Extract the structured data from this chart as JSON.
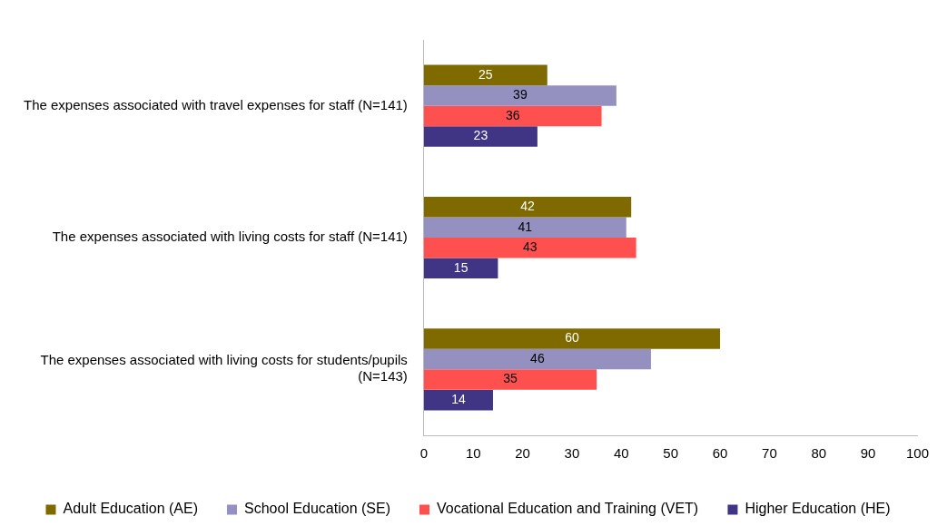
{
  "chart_data": {
    "type": "bar",
    "orientation": "horizontal",
    "categories": [
      "The expenses associated with travel expenses for staff (N=141)",
      "The expenses associated with living costs for staff (N=141)",
      "The expenses associated with living costs for students/pupils (N=143)"
    ],
    "series": [
      {
        "name": "Adult Education (AE)",
        "color": "#7f6a00",
        "values": [
          25,
          42,
          60
        ]
      },
      {
        "name": "School Education (SE)",
        "color": "#9490c0",
        "values": [
          39,
          41,
          46
        ]
      },
      {
        "name": "Vocational Education and Training (VET)",
        "color": "#ff5050",
        "values": [
          36,
          43,
          35
        ]
      },
      {
        "name": "Higher Education (HE)",
        "color": "#3f3584",
        "values": [
          23,
          15,
          14
        ]
      }
    ],
    "xlim": [
      0,
      100
    ],
    "xticks": [
      0,
      10,
      20,
      30,
      40,
      50,
      60,
      70,
      80,
      90,
      100
    ],
    "grid": false,
    "legend": "bottom",
    "data_labels": true
  }
}
